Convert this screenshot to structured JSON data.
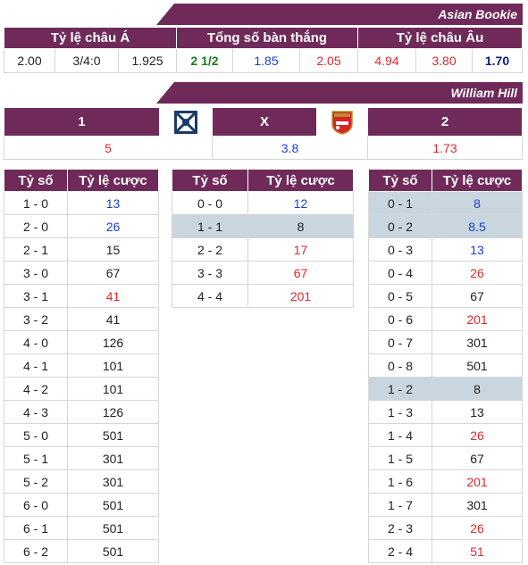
{
  "asian_bookie": {
    "title": "Asian Bookie",
    "headers": [
      "Tỷ lệ châu Á",
      "Tổng số bàn thắng",
      "Tỷ lệ châu Âu"
    ],
    "values": [
      "2.00",
      "3/4:0",
      "1.925",
      "2 1/2",
      "1.85",
      "2.05",
      "4.94",
      "3.80",
      "1.70"
    ]
  },
  "william_hill": {
    "title": "William Hill",
    "headers": [
      "1",
      "X",
      "2"
    ],
    "home_logo": "west-brom-crest",
    "away_logo": "arsenal-crest",
    "values": [
      "5",
      "3.8",
      "1.73"
    ]
  },
  "score_tables": {
    "col_score": "Tỷ số",
    "col_odds": "Tỷ lệ cược",
    "home": [
      {
        "s": "1 - 0",
        "o": "13"
      },
      {
        "s": "2 - 0",
        "o": "26"
      },
      {
        "s": "2 - 1",
        "o": "15"
      },
      {
        "s": "3 - 0",
        "o": "67"
      },
      {
        "s": "3 - 1",
        "o": "41"
      },
      {
        "s": "3 - 2",
        "o": "41"
      },
      {
        "s": "4 - 0",
        "o": "126"
      },
      {
        "s": "4 - 1",
        "o": "101"
      },
      {
        "s": "4 - 2",
        "o": "101"
      },
      {
        "s": "4 - 3",
        "o": "126"
      },
      {
        "s": "5 - 0",
        "o": "501"
      },
      {
        "s": "5 - 1",
        "o": "301"
      },
      {
        "s": "5 - 2",
        "o": "301"
      },
      {
        "s": "6 - 0",
        "o": "501"
      },
      {
        "s": "6 - 1",
        "o": "501"
      },
      {
        "s": "6 - 2",
        "o": "501"
      }
    ],
    "draw": [
      {
        "s": "0 - 0",
        "o": "12"
      },
      {
        "s": "1 - 1",
        "o": "8"
      },
      {
        "s": "2 - 2",
        "o": "17"
      },
      {
        "s": "3 - 3",
        "o": "67"
      },
      {
        "s": "4 - 4",
        "o": "201"
      }
    ],
    "away": [
      {
        "s": "0 - 1",
        "o": "8"
      },
      {
        "s": "0 - 2",
        "o": "8.5"
      },
      {
        "s": "0 - 3",
        "o": "13"
      },
      {
        "s": "0 - 4",
        "o": "26"
      },
      {
        "s": "0 - 5",
        "o": "67"
      },
      {
        "s": "0 - 6",
        "o": "201"
      },
      {
        "s": "0 - 7",
        "o": "301"
      },
      {
        "s": "0 - 8",
        "o": "501"
      },
      {
        "s": "1 - 2",
        "o": "8"
      },
      {
        "s": "1 - 3",
        "o": "13"
      },
      {
        "s": "1 - 4",
        "o": "26"
      },
      {
        "s": "1 - 5",
        "o": "67"
      },
      {
        "s": "1 - 6",
        "o": "201"
      },
      {
        "s": "1 - 7",
        "o": "301"
      },
      {
        "s": "2 - 3",
        "o": "26"
      },
      {
        "s": "2 - 4",
        "o": "51"
      }
    ]
  },
  "colors": {
    "header_bg": "#6f2a5a",
    "highlight_row": "#c9d6df",
    "red": "#e0262d",
    "blue": "#1a3fd1"
  }
}
